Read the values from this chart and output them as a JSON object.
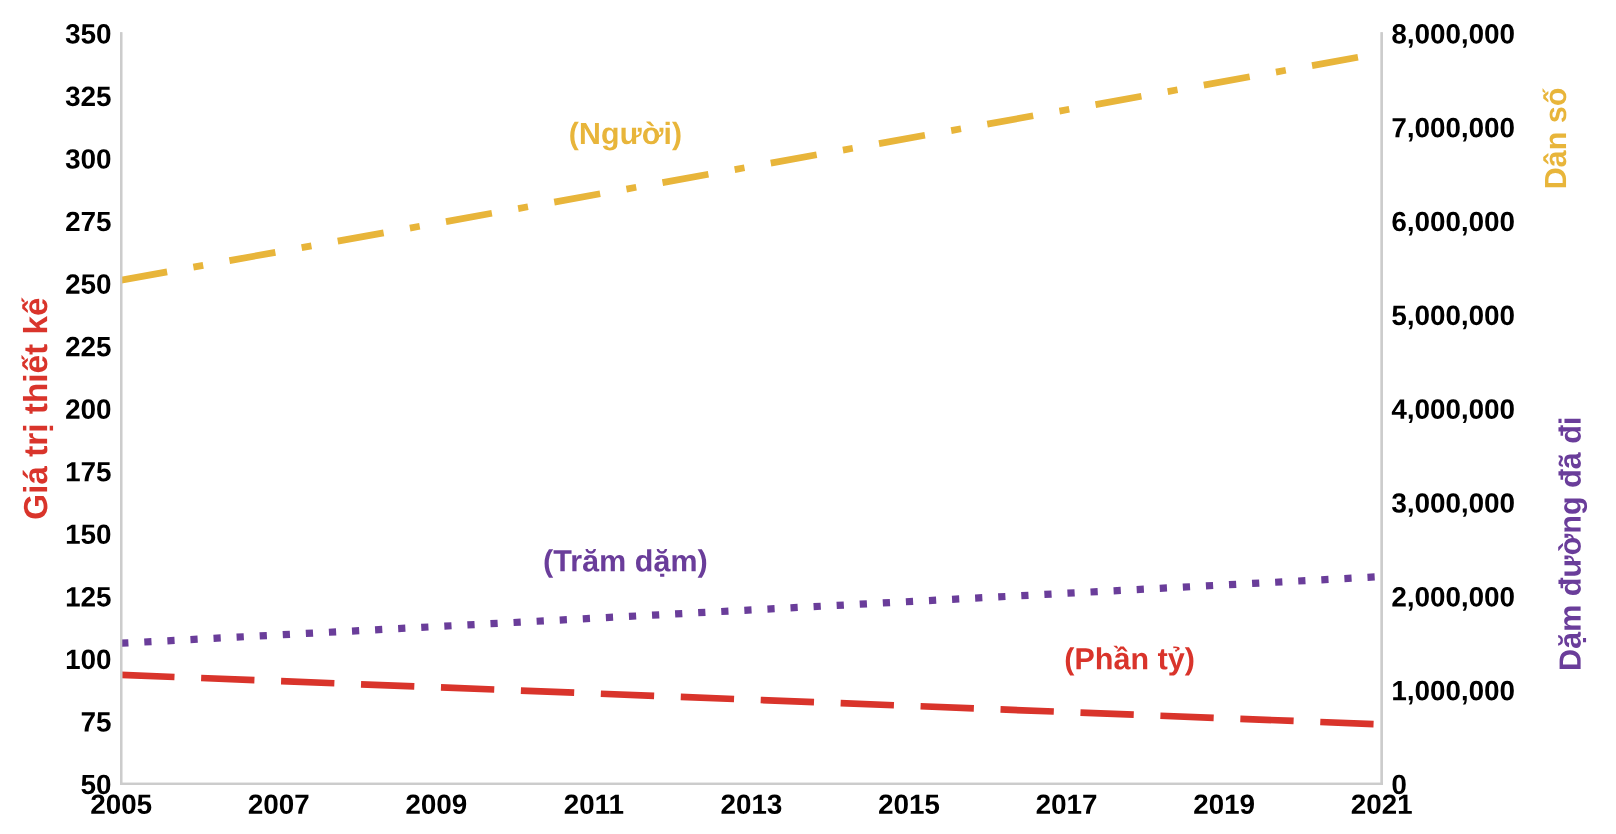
{
  "chart_data": {
    "type": "line",
    "ylabel": "Giá trị thiết kế",
    "y2label": "Dặm đường đã đi",
    "annotations": [
      "Dân số"
    ],
    "xlim": [
      2005,
      2021
    ],
    "xticks": [
      2005,
      2007,
      2009,
      2011,
      2013,
      2015,
      2017,
      2019,
      2021
    ],
    "ylim": [
      50,
      350
    ],
    "yticks": [
      50,
      75,
      100,
      125,
      150,
      175,
      200,
      225,
      250,
      275,
      300,
      325,
      350
    ],
    "y2lim": [
      0,
      8000000
    ],
    "y2ticks": [
      {
        "value": 0,
        "label": "0"
      },
      {
        "value": 1000000,
        "label": "1,000,000"
      },
      {
        "value": 2000000,
        "label": "2,000,000"
      },
      {
        "value": 3000000,
        "label": "3,000,000"
      },
      {
        "value": 4000000,
        "label": "4,000,000"
      },
      {
        "value": 5000000,
        "label": "5,000,000"
      },
      {
        "value": 6000000,
        "label": "6,000,000"
      },
      {
        "value": 7000000,
        "label": "7,000,000"
      },
      {
        "value": 8000000,
        "label": "8,000,000"
      }
    ],
    "grid": false,
    "legend": false,
    "x": [
      2005,
      2021
    ],
    "series": [
      {
        "name": "(Người)",
        "color": "#e8b53a",
        "axis": "y2",
        "line_style": "dashdot",
        "values": [
          5370000,
          7790000
        ]
      },
      {
        "name": "(Trăm dặm)",
        "color": "#6a3d9a",
        "axis": "y2",
        "line_style": "dotted",
        "values": [
          1500000,
          2210000
        ]
      },
      {
        "name": "(Phần tỷ)",
        "color": "#d9342b",
        "axis": "y",
        "line_style": "dashed",
        "values": [
          93.6,
          73.8
        ]
      }
    ]
  }
}
